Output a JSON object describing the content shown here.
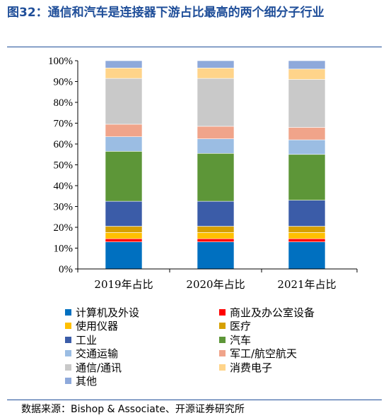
{
  "figure": {
    "title": "图32：通信和汽车是连接器下游占比最高的两个细分子行业",
    "source": "数据来源：Bishop & Associate、开源证券研究所"
  },
  "chart_data": {
    "type": "bar",
    "stacked": true,
    "normalized": true,
    "categories": [
      "2019年占比",
      "2020年占比",
      "2021年占比"
    ],
    "y_tick_labels": [
      "0%",
      "10%",
      "20%",
      "30%",
      "40%",
      "50%",
      "60%",
      "70%",
      "80%",
      "90%",
      "100%"
    ],
    "ylim": [
      0,
      100
    ],
    "grid": false,
    "legend_position": "bottom",
    "series": [
      {
        "name": "计算机及外设",
        "color": "#0070c0",
        "values": [
          13,
          13,
          13
        ]
      },
      {
        "name": "商业及办公室设备",
        "color": "#ff0000",
        "values": [
          1.5,
          1.5,
          1.5
        ]
      },
      {
        "name": "使用仪器",
        "color": "#ffc000",
        "values": [
          3,
          3,
          3
        ]
      },
      {
        "name": "医疗",
        "color": "#d6a000",
        "values": [
          3,
          3,
          3
        ]
      },
      {
        "name": "工业",
        "color": "#3b5ca8",
        "values": [
          12,
          12,
          12.5
        ]
      },
      {
        "name": "汽车",
        "color": "#5d9638",
        "values": [
          24,
          23,
          22
        ]
      },
      {
        "name": "交通运输",
        "color": "#9bbde3",
        "values": [
          7,
          7,
          7
        ]
      },
      {
        "name": "军工/航空航天",
        "color": "#f0a48a",
        "values": [
          6,
          6,
          6
        ]
      },
      {
        "name": "通信/通讯",
        "color": "#c9c9c9",
        "values": [
          22,
          23,
          23
        ]
      },
      {
        "name": "消费电子",
        "color": "#ffd48a",
        "values": [
          5,
          5,
          5
        ]
      },
      {
        "name": "其他",
        "color": "#8ea9db",
        "values": [
          3.5,
          3.5,
          4
        ]
      }
    ]
  }
}
